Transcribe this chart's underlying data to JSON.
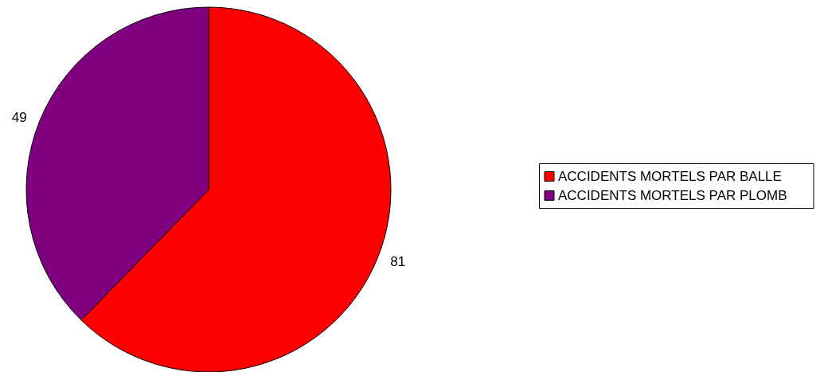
{
  "chart_data": {
    "type": "pie",
    "categories": [
      "ACCIDENTS MORTELS PAR BALLE",
      "ACCIDENTS MORTELS PAR PLOMB"
    ],
    "values": [
      81,
      49
    ],
    "colors": [
      "#ff0000",
      "#800080"
    ],
    "data_labels": true,
    "legend": "right"
  }
}
